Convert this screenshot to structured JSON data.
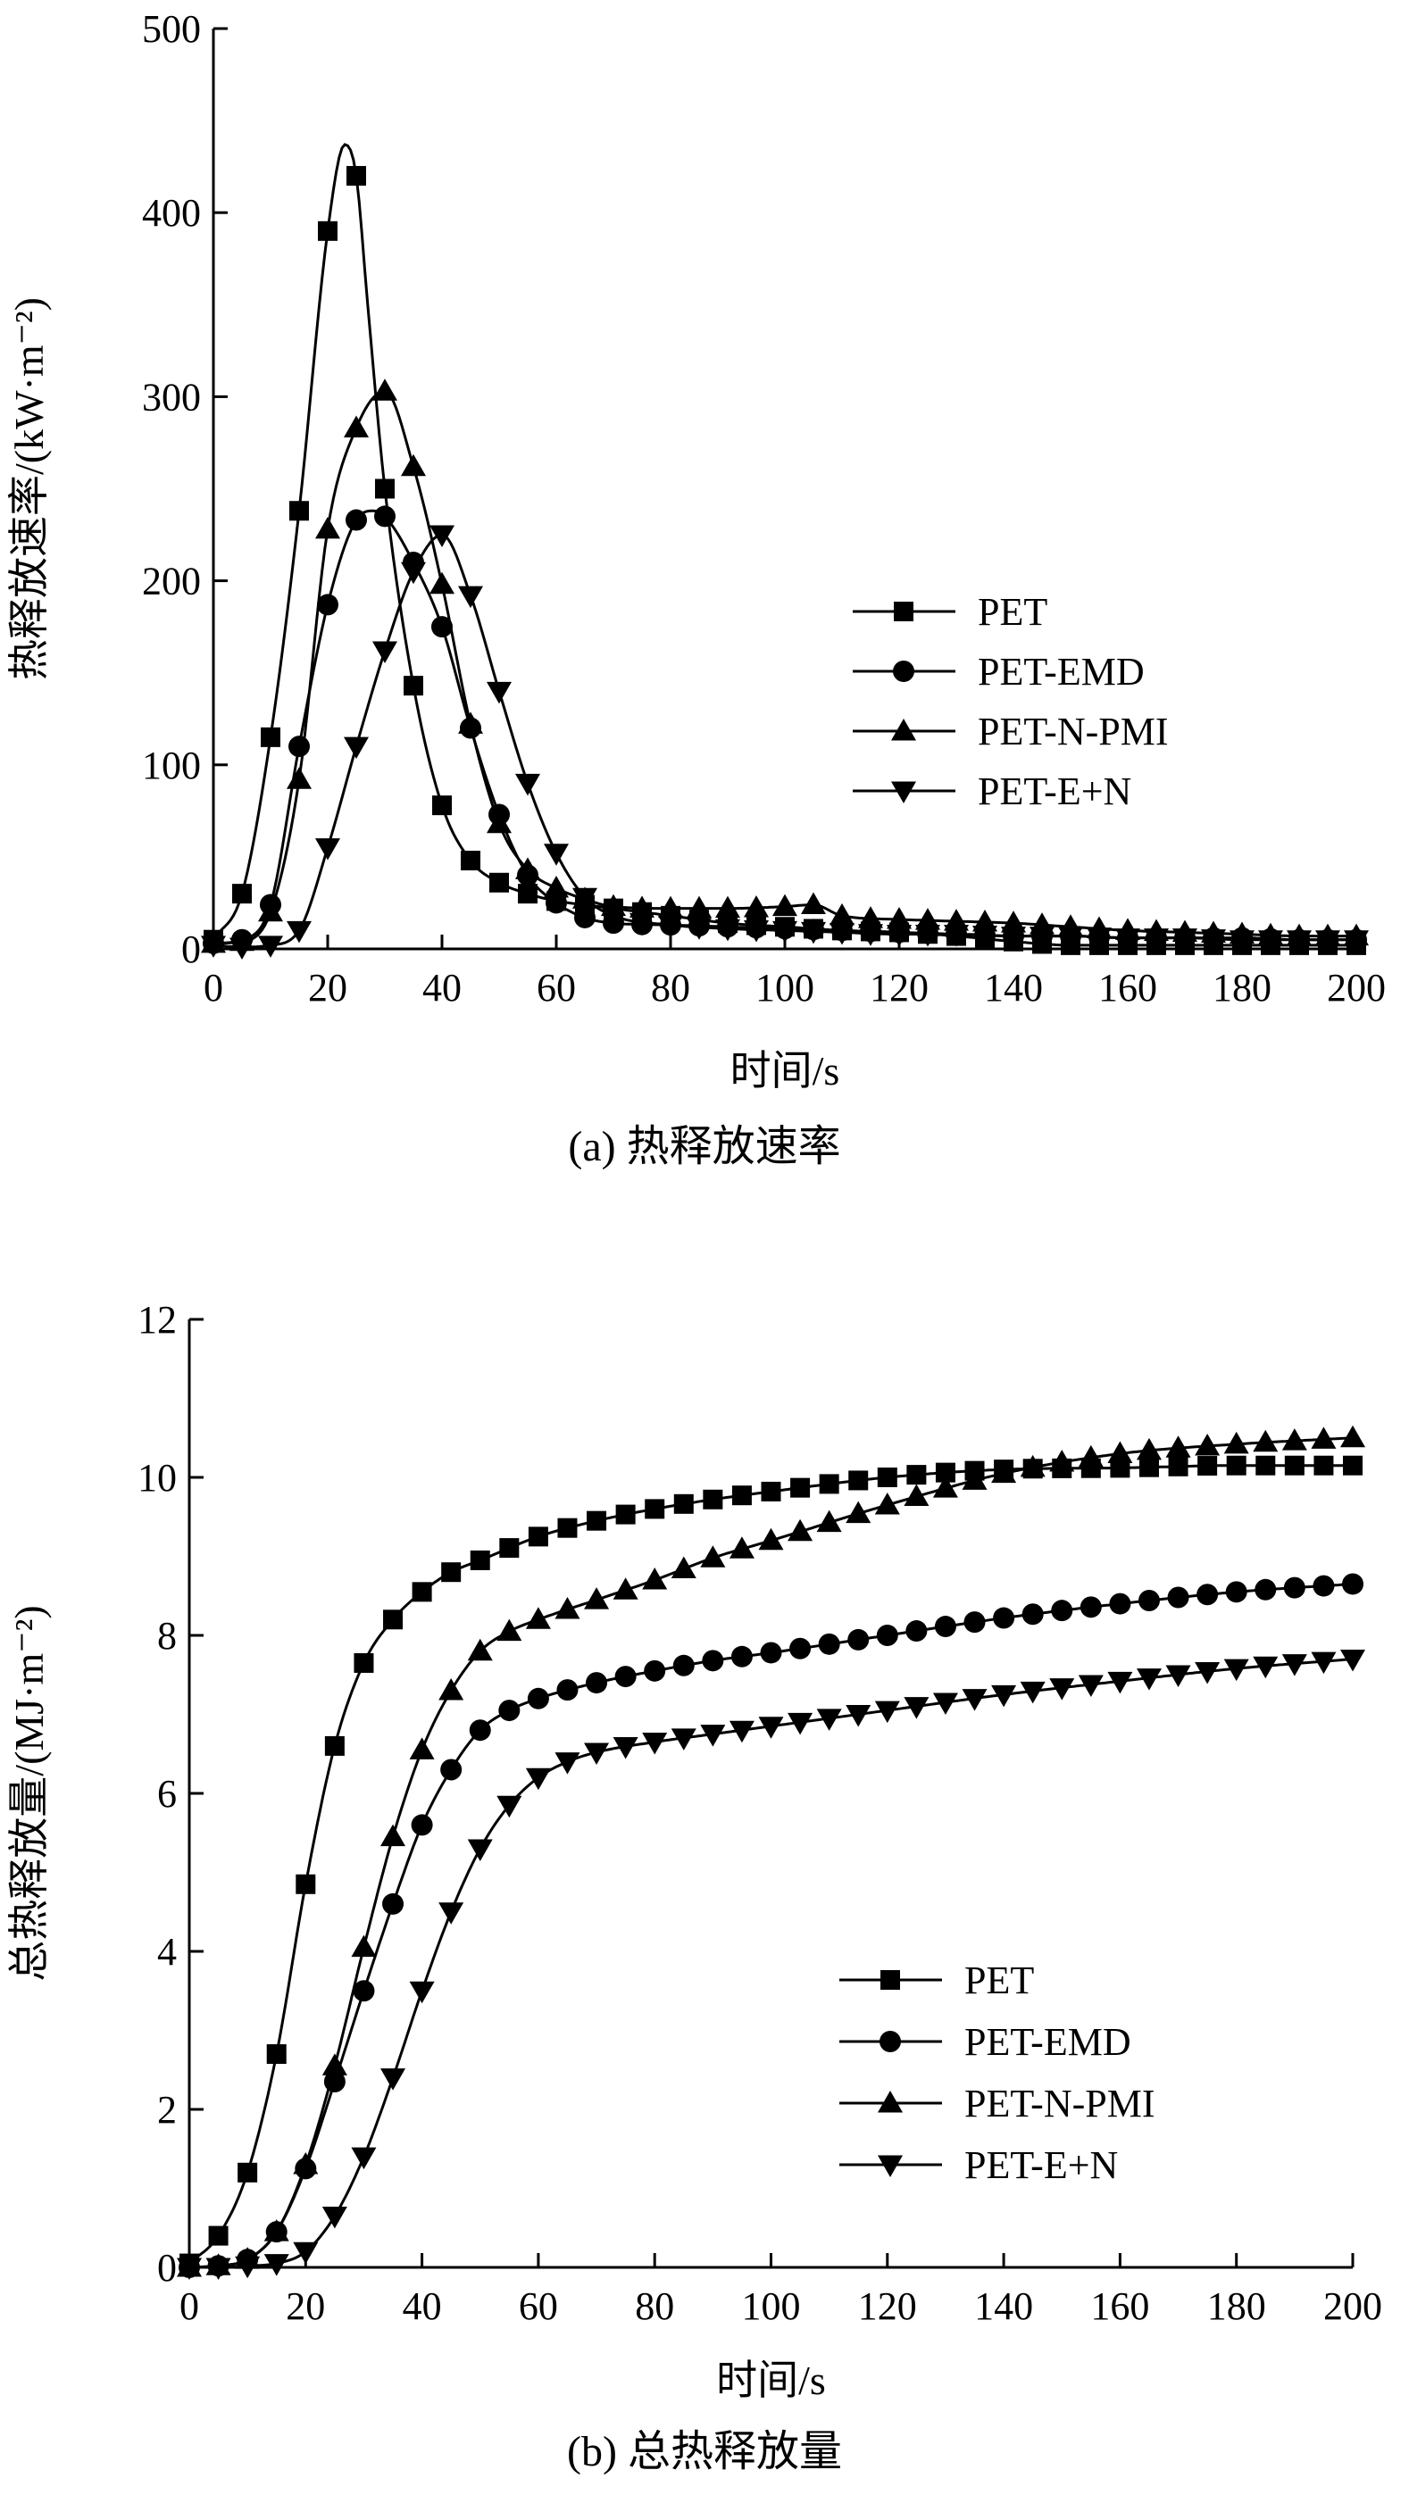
{
  "chart_data": [
    {
      "type": "line",
      "title": "(a) 热释放速率",
      "xlabel": "时间/s",
      "ylabel": "热释放速率/(kW·m⁻²)",
      "xlim": [
        0,
        200
      ],
      "ylim": [
        0,
        500
      ],
      "xticks": [
        0,
        20,
        40,
        60,
        80,
        100,
        120,
        140,
        160,
        180,
        200
      ],
      "yticks": [
        0,
        100,
        200,
        300,
        400,
        500
      ],
      "grid": false,
      "legend_position": "center-right",
      "series": [
        {
          "name": "PET",
          "marker": "square",
          "x": [
            0,
            5,
            10,
            15,
            20,
            23,
            25,
            27,
            30,
            35,
            40,
            45,
            50,
            55,
            60,
            65,
            70,
            80,
            90,
            100,
            110,
            120,
            130,
            140,
            150,
            160,
            170,
            180,
            190,
            200
          ],
          "y": [
            5,
            30,
            115,
            238,
            390,
            437,
            420,
            350,
            250,
            143,
            78,
            48,
            36,
            30,
            26,
            24,
            22,
            18,
            14,
            12,
            10,
            9,
            7,
            4,
            2,
            2,
            2,
            2,
            2,
            2
          ],
          "marker_x": [
            0,
            5,
            10,
            15,
            20,
            25,
            30,
            35,
            40,
            45,
            50,
            55,
            60,
            65,
            70,
            75,
            80,
            85,
            90,
            95,
            100,
            105,
            110,
            115,
            120,
            125,
            130,
            135,
            140,
            145,
            150,
            155,
            160,
            165,
            170,
            175,
            180,
            185,
            190,
            195,
            200
          ]
        },
        {
          "name": "PET-EMD",
          "marker": "circle",
          "x": [
            0,
            5,
            10,
            15,
            20,
            25,
            28,
            30,
            35,
            40,
            45,
            50,
            55,
            60,
            65,
            70,
            80,
            90,
            100,
            110,
            120,
            130,
            140,
            150,
            160,
            170,
            180,
            190,
            200
          ],
          "y": [
            3,
            5,
            24,
            110,
            187,
            233,
            238,
            235,
            210,
            175,
            120,
            73,
            40,
            25,
            17,
            14,
            13,
            12,
            11,
            10,
            9,
            8,
            7,
            7,
            6,
            6,
            6,
            5,
            5
          ],
          "marker_x": [
            0,
            5,
            10,
            15,
            20,
            25,
            30,
            35,
            40,
            45,
            50,
            55,
            60,
            65,
            70,
            75,
            80,
            85,
            90,
            95,
            100,
            105,
            110,
            115,
            120,
            125,
            130,
            135,
            140,
            145,
            150,
            155,
            160,
            165,
            170,
            175,
            180,
            185,
            190,
            195,
            200
          ]
        },
        {
          "name": "PET-N-PMI",
          "marker": "triangle-up",
          "x": [
            0,
            5,
            10,
            15,
            20,
            25,
            30,
            35,
            40,
            45,
            50,
            55,
            60,
            65,
            70,
            80,
            90,
            100,
            105,
            110,
            120,
            130,
            140,
            150,
            160,
            170,
            180,
            190,
            200
          ],
          "y": [
            3,
            4,
            20,
            92,
            228,
            283,
            303,
            262,
            198,
            122,
            68,
            43,
            33,
            27,
            23,
            22,
            22,
            23,
            24,
            18,
            16,
            15,
            14,
            12,
            10,
            9,
            8,
            7,
            7
          ],
          "marker_x": [
            0,
            5,
            10,
            15,
            20,
            25,
            30,
            35,
            40,
            45,
            50,
            55,
            60,
            65,
            70,
            75,
            80,
            85,
            90,
            95,
            100,
            105,
            110,
            115,
            120,
            125,
            130,
            135,
            140,
            145,
            150,
            155,
            160,
            165,
            170,
            175,
            180,
            185,
            190,
            195,
            200
          ]
        },
        {
          "name": "PET-E+N",
          "marker": "triangle-down",
          "x": [
            0,
            5,
            10,
            15,
            20,
            25,
            30,
            35,
            40,
            45,
            50,
            55,
            60,
            65,
            70,
            80,
            90,
            100,
            110,
            120,
            130,
            140,
            150,
            160,
            170,
            180,
            190,
            200
          ],
          "y": [
            2,
            1,
            2,
            10,
            55,
            110,
            162,
            205,
            225,
            192,
            140,
            90,
            52,
            28,
            18,
            13,
            11,
            10,
            9,
            8,
            8,
            7,
            7,
            6,
            6,
            5,
            5,
            5
          ],
          "marker_x": [
            0,
            5,
            10,
            15,
            20,
            25,
            30,
            35,
            40,
            45,
            50,
            55,
            60,
            65,
            70,
            75,
            80,
            85,
            90,
            95,
            100,
            105,
            110,
            115,
            120,
            125,
            130,
            135,
            140,
            145,
            150,
            155,
            160,
            165,
            170,
            175,
            180,
            185,
            190,
            195,
            200
          ]
        }
      ]
    },
    {
      "type": "line",
      "title": "(b) 总热释放量",
      "xlabel": "时间/s",
      "ylabel": "总热释放量/(MJ·m⁻²)",
      "xlim": [
        0,
        200
      ],
      "ylim": [
        0,
        12
      ],
      "xticks": [
        0,
        20,
        40,
        60,
        80,
        100,
        120,
        140,
        160,
        180,
        200
      ],
      "yticks": [
        0,
        2,
        4,
        6,
        8,
        10,
        12
      ],
      "grid": false,
      "legend_position": "center-right",
      "series": [
        {
          "name": "PET",
          "marker": "square",
          "x": [
            0,
            5,
            10,
            15,
            20,
            25,
            30,
            35,
            40,
            45,
            50,
            60,
            70,
            80,
            90,
            100,
            120,
            140,
            160,
            180,
            200
          ],
          "y": [
            0.05,
            0.4,
            1.2,
            2.7,
            4.85,
            6.6,
            7.65,
            8.2,
            8.55,
            8.8,
            8.95,
            9.25,
            9.45,
            9.6,
            9.72,
            9.82,
            10.0,
            10.1,
            10.12,
            10.15,
            10.15
          ],
          "marker_x": [
            0,
            5,
            10,
            15,
            20,
            25,
            30,
            35,
            40,
            45,
            50,
            55,
            60,
            65,
            70,
            75,
            80,
            85,
            90,
            95,
            100,
            105,
            110,
            115,
            120,
            125,
            130,
            135,
            140,
            145,
            150,
            155,
            160,
            165,
            170,
            175,
            180,
            185,
            190,
            195,
            200
          ]
        },
        {
          "name": "PET-EMD",
          "marker": "circle",
          "x": [
            0,
            5,
            10,
            15,
            20,
            25,
            30,
            35,
            40,
            45,
            50,
            55,
            60,
            70,
            80,
            90,
            100,
            120,
            140,
            160,
            180,
            200
          ],
          "y": [
            0.0,
            0.02,
            0.1,
            0.45,
            1.25,
            2.35,
            3.5,
            4.6,
            5.6,
            6.3,
            6.8,
            7.05,
            7.2,
            7.4,
            7.55,
            7.68,
            7.78,
            8.0,
            8.22,
            8.4,
            8.55,
            8.65
          ],
          "marker_x": [
            0,
            5,
            10,
            15,
            20,
            25,
            30,
            35,
            40,
            45,
            50,
            55,
            60,
            65,
            70,
            75,
            80,
            85,
            90,
            95,
            100,
            105,
            110,
            115,
            120,
            125,
            130,
            135,
            140,
            145,
            150,
            155,
            160,
            165,
            170,
            175,
            180,
            185,
            190,
            195,
            200
          ]
        },
        {
          "name": "PET-N-PMI",
          "marker": "triangle-up",
          "x": [
            0,
            5,
            10,
            15,
            20,
            25,
            30,
            35,
            40,
            45,
            50,
            55,
            60,
            70,
            80,
            90,
            100,
            120,
            140,
            160,
            180,
            200
          ],
          "y": [
            0.0,
            0.02,
            0.1,
            0.45,
            1.3,
            2.55,
            4.05,
            5.45,
            6.55,
            7.3,
            7.8,
            8.05,
            8.2,
            8.45,
            8.7,
            8.98,
            9.2,
            9.65,
            10.05,
            10.3,
            10.42,
            10.5
          ],
          "marker_x": [
            0,
            5,
            10,
            15,
            20,
            25,
            30,
            35,
            40,
            45,
            50,
            55,
            60,
            65,
            70,
            75,
            80,
            85,
            90,
            95,
            100,
            105,
            110,
            115,
            120,
            125,
            130,
            135,
            140,
            145,
            150,
            155,
            160,
            165,
            170,
            175,
            180,
            185,
            190,
            195,
            200
          ]
        },
        {
          "name": "PET-E+N",
          "marker": "triangle-down",
          "x": [
            0,
            5,
            10,
            15,
            20,
            25,
            30,
            35,
            40,
            45,
            50,
            55,
            60,
            65,
            70,
            80,
            90,
            100,
            120,
            140,
            160,
            180,
            200
          ],
          "y": [
            0.0,
            0.0,
            0.02,
            0.05,
            0.2,
            0.65,
            1.4,
            2.4,
            3.5,
            4.5,
            5.3,
            5.85,
            6.2,
            6.4,
            6.52,
            6.65,
            6.75,
            6.85,
            7.05,
            7.25,
            7.42,
            7.58,
            7.7
          ],
          "marker_x": [
            0,
            5,
            10,
            15,
            20,
            25,
            30,
            35,
            40,
            45,
            50,
            55,
            60,
            65,
            70,
            75,
            80,
            85,
            90,
            95,
            100,
            105,
            110,
            115,
            120,
            125,
            130,
            135,
            140,
            145,
            150,
            155,
            160,
            165,
            170,
            175,
            180,
            185,
            190,
            195,
            200
          ]
        }
      ]
    }
  ]
}
